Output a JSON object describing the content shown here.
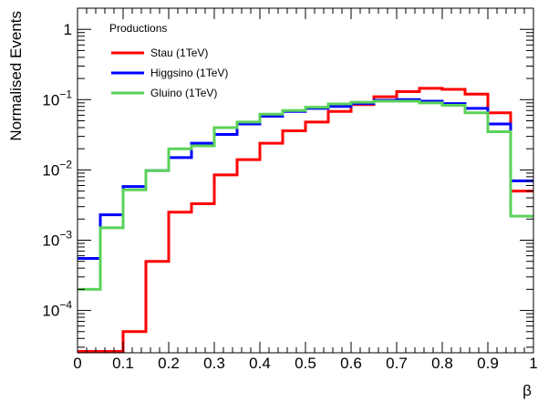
{
  "chart_data": {
    "type": "line",
    "step": true,
    "title": "",
    "xlabel": "β",
    "ylabel": "Normalised Events",
    "xlim": [
      0,
      1
    ],
    "ylim": [
      2.5e-05,
      2
    ],
    "yscale": "log",
    "grid": false,
    "legend": {
      "title": "Productions",
      "placement": "top-left"
    },
    "x_ticks": [
      {
        "value": 0,
        "label": "0"
      },
      {
        "value": 0.1,
        "label": "0.1"
      },
      {
        "value": 0.2,
        "label": "0.2"
      },
      {
        "value": 0.3,
        "label": "0.3"
      },
      {
        "value": 0.4,
        "label": "0.4"
      },
      {
        "value": 0.5,
        "label": "0.5"
      },
      {
        "value": 0.6,
        "label": "0.6"
      },
      {
        "value": 0.7,
        "label": "0.7"
      },
      {
        "value": 0.8,
        "label": "0.8"
      },
      {
        "value": 0.9,
        "label": "0.9"
      },
      {
        "value": 1,
        "label": "1"
      }
    ],
    "y_ticks": [
      {
        "value": 1,
        "base": "1",
        "exp": ""
      },
      {
        "value": 0.1,
        "base": "10",
        "exp": "−1"
      },
      {
        "value": 0.01,
        "base": "10",
        "exp": "−2"
      },
      {
        "value": 0.001,
        "base": "10",
        "exp": "−3"
      },
      {
        "value": 0.0001,
        "base": "10",
        "exp": "−4"
      }
    ],
    "bin_edges": [
      0,
      0.05,
      0.1,
      0.15,
      0.2,
      0.25,
      0.3,
      0.35,
      0.4,
      0.45,
      0.5,
      0.55,
      0.6,
      0.65,
      0.7,
      0.75,
      0.8,
      0.85,
      0.9,
      0.95,
      1.0
    ],
    "series": [
      {
        "name": "Stau (1TeV)",
        "color": "#ff0000",
        "values": [
          2.5e-05,
          2.5e-05,
          5e-05,
          0.0005,
          0.0025,
          0.0033,
          0.0085,
          0.014,
          0.024,
          0.036,
          0.048,
          0.068,
          0.085,
          0.11,
          0.13,
          0.145,
          0.14,
          0.12,
          0.065,
          0.005
        ]
      },
      {
        "name": "Higgsino (1TeV)",
        "color": "#0000ff",
        "values": [
          0.00055,
          0.0023,
          0.0058,
          0.0098,
          0.015,
          0.024,
          0.032,
          0.045,
          0.058,
          0.068,
          0.075,
          0.08,
          0.088,
          0.098,
          0.1,
          0.095,
          0.088,
          0.075,
          0.045,
          0.007
        ]
      },
      {
        "name": "Gluino (1TeV)",
        "color": "#5ad25a",
        "values": [
          0.0002,
          0.0015,
          0.0052,
          0.0098,
          0.02,
          0.022,
          0.04,
          0.048,
          0.062,
          0.07,
          0.078,
          0.087,
          0.092,
          0.095,
          0.095,
          0.09,
          0.083,
          0.065,
          0.035,
          0.0022
        ]
      }
    ]
  }
}
